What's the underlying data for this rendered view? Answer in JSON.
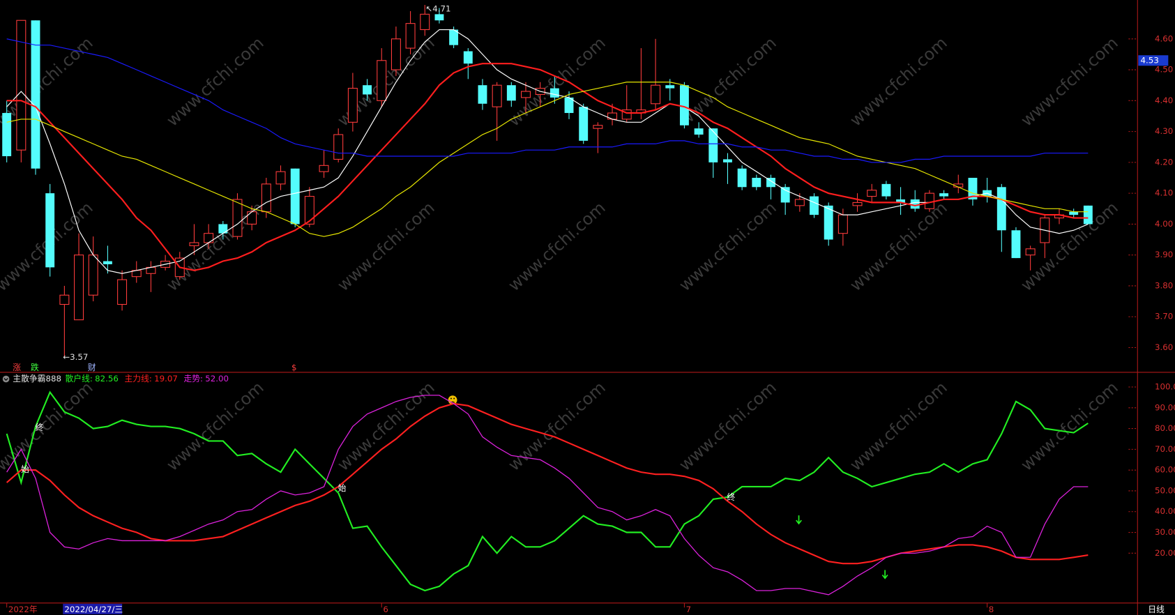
{
  "chart_data": [
    {
      "type": "candlestick",
      "categories": [
        "2022年",
        null,
        null,
        null,
        null,
        null,
        null,
        null,
        null,
        null,
        null,
        null,
        null,
        null,
        null,
        null,
        null,
        null,
        null,
        null,
        null,
        null,
        null,
        null,
        null,
        null,
        "6",
        null,
        null,
        null,
        null,
        null,
        null,
        null,
        null,
        null,
        null,
        null,
        null,
        null,
        null,
        null,
        null,
        null,
        null,
        null,
        null,
        "7",
        null,
        null,
        null,
        null,
        null,
        null,
        null,
        null,
        null,
        null,
        null,
        null,
        null,
        null,
        null,
        null,
        null,
        null,
        null,
        null,
        "8",
        null,
        null,
        null,
        null,
        null,
        null,
        null
      ],
      "open": [
        4.36,
        4.24,
        4.66,
        4.1,
        3.74,
        3.69,
        3.77,
        3.88,
        3.74,
        3.83,
        3.84,
        3.86,
        3.83,
        3.93,
        3.94,
        4.0,
        3.96,
        4.0,
        4.04,
        4.13,
        4.18,
        4.0,
        4.17,
        4.21,
        4.33,
        4.45,
        4.4,
        4.5,
        4.57,
        4.63,
        4.68,
        4.63,
        4.56,
        4.45,
        4.38,
        4.45,
        4.41,
        4.42,
        4.44,
        4.41,
        4.38,
        4.31,
        4.34,
        4.34,
        4.36,
        4.39,
        4.45,
        4.45,
        4.31,
        4.31,
        4.21,
        4.18,
        4.15,
        4.15,
        4.12,
        4.06,
        4.09,
        4.06,
        3.97,
        4.06,
        4.09,
        4.13,
        4.08,
        4.08,
        4.05,
        4.1,
        4.12,
        4.15,
        4.11,
        4.12,
        3.98,
        3.9,
        3.94,
        4.02,
        4.04,
        4.06
      ],
      "high": [
        4.4,
        4.66,
        4.66,
        4.13,
        3.8,
        3.97,
        3.96,
        3.93,
        3.85,
        3.88,
        3.88,
        3.9,
        3.91,
        4.0,
        4.0,
        4.01,
        4.1,
        4.06,
        4.15,
        4.19,
        4.18,
        4.12,
        4.24,
        4.31,
        4.49,
        4.47,
        4.57,
        4.64,
        4.69,
        4.71,
        4.7,
        4.64,
        4.57,
        4.47,
        4.46,
        4.46,
        4.46,
        4.46,
        4.48,
        4.43,
        4.39,
        4.33,
        4.39,
        4.45,
        4.57,
        4.6,
        4.47,
        4.46,
        4.33,
        4.31,
        4.23,
        4.19,
        4.16,
        4.16,
        4.13,
        4.1,
        4.1,
        4.07,
        4.05,
        4.1,
        4.13,
        4.14,
        4.12,
        4.11,
        4.11,
        4.11,
        4.16,
        4.15,
        4.15,
        4.13,
        3.99,
        3.93,
        4.03,
        4.05,
        4.05,
        4.06
      ],
      "low": [
        4.2,
        4.2,
        4.16,
        3.83,
        3.57,
        3.69,
        3.75,
        3.84,
        3.72,
        3.81,
        3.78,
        3.85,
        3.82,
        3.9,
        3.92,
        3.95,
        3.95,
        3.98,
        4.02,
        4.11,
        3.99,
        3.99,
        4.15,
        4.2,
        4.3,
        4.4,
        4.38,
        4.48,
        4.55,
        4.61,
        4.65,
        4.57,
        4.47,
        4.37,
        4.27,
        4.38,
        4.36,
        4.38,
        4.39,
        4.34,
        4.26,
        4.23,
        4.32,
        4.33,
        4.34,
        4.37,
        4.4,
        4.31,
        4.28,
        4.15,
        4.13,
        4.11,
        4.11,
        4.08,
        4.03,
        4.04,
        4.02,
        3.93,
        3.93,
        4.04,
        4.07,
        4.08,
        4.03,
        4.04,
        4.04,
        4.08,
        4.1,
        4.06,
        4.07,
        3.91,
        3.89,
        3.85,
        3.89,
        4.0,
        4.02,
        4.0
      ],
      "close": [
        4.22,
        4.66,
        4.18,
        3.86,
        3.77,
        3.9,
        3.9,
        3.87,
        3.82,
        3.85,
        3.86,
        3.88,
        3.89,
        3.94,
        3.97,
        3.97,
        4.08,
        4.04,
        4.13,
        4.17,
        4.0,
        4.09,
        4.19,
        4.29,
        4.44,
        4.42,
        4.53,
        4.6,
        4.65,
        4.68,
        4.66,
        4.58,
        4.52,
        4.39,
        4.45,
        4.4,
        4.43,
        4.44,
        4.41,
        4.36,
        4.27,
        4.32,
        4.36,
        4.37,
        4.37,
        4.45,
        4.44,
        4.32,
        4.29,
        4.2,
        4.2,
        4.12,
        4.12,
        4.12,
        4.07,
        4.08,
        4.03,
        3.95,
        4.03,
        4.07,
        4.11,
        4.09,
        4.07,
        4.05,
        4.1,
        4.09,
        4.13,
        4.08,
        4.09,
        3.98,
        3.89,
        3.92,
        4.02,
        4.03,
        4.03,
        4.0
      ],
      "up_color": "#ff3c3c",
      "down_color": "#54fcfc",
      "series": [
        {
          "color": "#ffffff",
          "values": [
            4.38,
            4.43,
            4.38,
            4.26,
            4.13,
            3.98,
            3.9,
            3.85,
            3.84,
            3.85,
            3.86,
            3.87,
            3.88,
            3.91,
            3.94,
            3.97,
            4.0,
            4.04,
            4.07,
            4.09,
            4.1,
            4.11,
            4.12,
            4.15,
            4.22,
            4.3,
            4.38,
            4.46,
            4.53,
            4.59,
            4.63,
            4.63,
            4.6,
            4.55,
            4.5,
            4.47,
            4.45,
            4.43,
            4.42,
            4.41,
            4.38,
            4.36,
            4.34,
            4.33,
            4.33,
            4.36,
            4.39,
            4.38,
            4.35,
            4.3,
            4.25,
            4.2,
            4.17,
            4.14,
            4.11,
            4.09,
            4.07,
            4.05,
            4.03,
            4.03,
            4.04,
            4.05,
            4.06,
            4.07,
            4.07,
            4.08,
            4.08,
            4.09,
            4.1,
            4.08,
            4.03,
            3.99,
            3.98,
            3.97,
            3.98,
            4.0
          ]
        },
        {
          "color": "#ff1e1e",
          "values": [
            4.4,
            4.4,
            4.38,
            4.33,
            4.28,
            4.23,
            4.18,
            4.13,
            4.08,
            4.02,
            3.98,
            3.92,
            3.86,
            3.85,
            3.86,
            3.88,
            3.89,
            3.91,
            3.94,
            3.96,
            3.98,
            4.01,
            4.05,
            4.09,
            4.14,
            4.19,
            4.24,
            4.29,
            4.34,
            4.39,
            4.45,
            4.49,
            4.51,
            4.52,
            4.52,
            4.52,
            4.51,
            4.5,
            4.48,
            4.46,
            4.43,
            4.4,
            4.38,
            4.36,
            4.36,
            4.37,
            4.39,
            4.38,
            4.36,
            4.33,
            4.31,
            4.28,
            4.25,
            4.22,
            4.18,
            4.15,
            4.12,
            4.1,
            4.09,
            4.08,
            4.07,
            4.07,
            4.07,
            4.06,
            4.07,
            4.08,
            4.08,
            4.09,
            4.09,
            4.08,
            4.06,
            4.04,
            4.03,
            4.03,
            4.02,
            4.02
          ]
        },
        {
          "color": "#e8e800",
          "values": [
            4.33,
            4.34,
            4.34,
            4.32,
            4.3,
            4.28,
            4.26,
            4.24,
            4.22,
            4.21,
            4.19,
            4.17,
            4.15,
            4.13,
            4.11,
            4.09,
            4.07,
            4.05,
            4.04,
            4.02,
            4.0,
            3.97,
            3.96,
            3.97,
            3.99,
            4.02,
            4.05,
            4.09,
            4.12,
            4.16,
            4.2,
            4.23,
            4.26,
            4.29,
            4.31,
            4.34,
            4.36,
            4.38,
            4.4,
            4.42,
            4.43,
            4.44,
            4.45,
            4.46,
            4.46,
            4.46,
            4.46,
            4.45,
            4.43,
            4.41,
            4.38,
            4.36,
            4.34,
            4.32,
            4.3,
            4.28,
            4.27,
            4.26,
            4.24,
            4.22,
            4.21,
            4.2,
            4.19,
            4.18,
            4.16,
            4.14,
            4.12,
            4.1,
            4.09,
            4.08,
            4.07,
            4.06,
            4.05,
            4.05,
            4.04,
            4.04
          ]
        },
        {
          "color": "#1a1aff",
          "values": [
            4.6,
            4.59,
            4.58,
            4.58,
            4.57,
            4.56,
            4.55,
            4.54,
            4.52,
            4.5,
            4.48,
            4.46,
            4.44,
            4.42,
            4.4,
            4.37,
            4.35,
            4.33,
            4.31,
            4.28,
            4.26,
            4.25,
            4.24,
            4.23,
            4.23,
            4.22,
            4.22,
            4.22,
            4.22,
            4.22,
            4.22,
            4.22,
            4.23,
            4.23,
            4.23,
            4.23,
            4.24,
            4.24,
            4.24,
            4.25,
            4.25,
            4.25,
            4.25,
            4.26,
            4.26,
            4.26,
            4.27,
            4.27,
            4.26,
            4.26,
            4.26,
            4.25,
            4.25,
            4.24,
            4.24,
            4.23,
            4.22,
            4.22,
            4.21,
            4.21,
            4.2,
            4.2,
            4.2,
            4.21,
            4.21,
            4.22,
            4.22,
            4.22,
            4.22,
            4.22,
            4.22,
            4.22,
            4.23,
            4.23,
            4.23,
            4.23
          ]
        }
      ],
      "ylim": [
        3.52,
        4.726
      ],
      "yticks": [
        {
          "value": 3.6,
          "label": "3.60"
        },
        {
          "value": 3.7,
          "label": "3.70"
        },
        {
          "value": 3.8,
          "label": "3.80"
        },
        {
          "value": 3.9,
          "label": "3.90"
        },
        {
          "value": 4.0,
          "label": "4.00"
        },
        {
          "value": 4.1,
          "label": "4.10"
        },
        {
          "value": 4.2,
          "label": "4.20"
        },
        {
          "value": 4.3,
          "label": "4.30"
        },
        {
          "value": 4.4,
          "label": "4.40"
        },
        {
          "value": 4.5,
          "label": "4.50"
        },
        {
          "value": 4.6,
          "label": "4.60"
        }
      ],
      "current_price": {
        "value": 4.53,
        "label": "4.53"
      },
      "annotations": [
        {
          "text": "↖4.71"
        },
        {
          "text": "←3.57"
        }
      ],
      "markers": [
        "涨",
        "跌",
        "财",
        "$"
      ]
    },
    {
      "type": "line",
      "title": "主散争霸888",
      "series": [
        {
          "name": "散户线:",
          "value_label": "82.56",
          "color": "#22ee22",
          "values": [
            77.5,
            54,
            81,
            97.5,
            88,
            85,
            80,
            81,
            84,
            82,
            81,
            81,
            80,
            77.5,
            74,
            74,
            67,
            68,
            63,
            59,
            70,
            63,
            56,
            49,
            32,
            33,
            23,
            14,
            5,
            2,
            4,
            10,
            14,
            28,
            20,
            28,
            23,
            23,
            26,
            32,
            38,
            34,
            33,
            30,
            30,
            23,
            23,
            34,
            38,
            46,
            47,
            52,
            52,
            52,
            56,
            55,
            59,
            66,
            59,
            56,
            52,
            54,
            56,
            58,
            59,
            63,
            59,
            63,
            65,
            77.5,
            93,
            89,
            80,
            79,
            78,
            82.56
          ]
        },
        {
          "name": "主力线:",
          "value_label": "19.07",
          "color": "#ff2020",
          "values": [
            54,
            60,
            60,
            55,
            48,
            42,
            38,
            35,
            32,
            30,
            27,
            26,
            26,
            26,
            27,
            28,
            31,
            34,
            37,
            40,
            43,
            45,
            48,
            52,
            58,
            64,
            70,
            75,
            81,
            86,
            90,
            92,
            91,
            88,
            85,
            82,
            80,
            78,
            76,
            73,
            70,
            67,
            64,
            61,
            59,
            58,
            58,
            57,
            55,
            51,
            45,
            40,
            34,
            29,
            25,
            22,
            19,
            16,
            15,
            15,
            16,
            18,
            20,
            21,
            22,
            23,
            24,
            24,
            23,
            21,
            18,
            17,
            17,
            17,
            18,
            19.07
          ]
        },
        {
          "name": "走势:",
          "value_label": "52.00",
          "color": "#dd22dd",
          "values": [
            59,
            70,
            56,
            30,
            23,
            22,
            25,
            27,
            26,
            26,
            26,
            26,
            28,
            31,
            34,
            36,
            40,
            41,
            46,
            50,
            48,
            49,
            52,
            70,
            81,
            87,
            90,
            93,
            95,
            96,
            96,
            92,
            87,
            76,
            71,
            67,
            66,
            65,
            61,
            56,
            49,
            42,
            40,
            36,
            38,
            41,
            38,
            27,
            19,
            13,
            11,
            7,
            2,
            2,
            3,
            3,
            1.5,
            0,
            4,
            9,
            13,
            18,
            20,
            20,
            21,
            23,
            27,
            28,
            33,
            30,
            18,
            18,
            34,
            46,
            52,
            52
          ]
        }
      ],
      "ylim": [
        -4,
        106
      ],
      "yticks": [
        {
          "value": 20,
          "label": "20.00"
        },
        {
          "value": 30,
          "label": "30.00"
        },
        {
          "value": 40,
          "label": "40.00"
        },
        {
          "value": 50,
          "label": "50.00"
        },
        {
          "value": 60,
          "label": "60.00"
        },
        {
          "value": 70,
          "label": "70.00"
        },
        {
          "value": 80,
          "label": "80.00"
        },
        {
          "value": 90,
          "label": "90.00"
        },
        {
          "value": 100,
          "label": "100.0"
        }
      ],
      "markers": [
        "终",
        "始",
        "始",
        "终"
      ]
    }
  ],
  "cursor_date": "2022/04/27/三",
  "period": "日线",
  "watermark": "www.cfchi.com"
}
